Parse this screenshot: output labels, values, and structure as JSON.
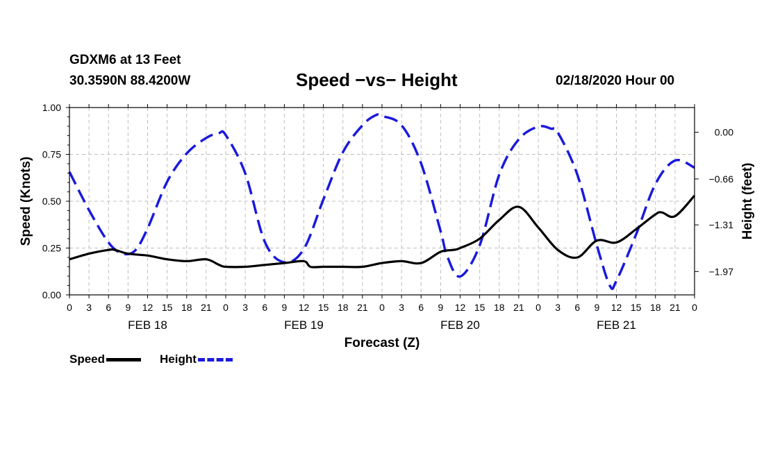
{
  "header": {
    "station": "GDXM6 at 13 Feet",
    "coords": "30.3590N 88.4200W",
    "title": "Speed −vs− Height",
    "stamp": "02/18/2020 Hour 00"
  },
  "legend": {
    "speed_label": "Speed",
    "height_label": "Height"
  },
  "colors": {
    "speed": "#000000",
    "height": "#1a1adc",
    "grid": "#bdbdbd"
  },
  "chart_data": {
    "type": "line",
    "title": "Speed −vs− Height",
    "xlabel": "Forecast (Z)",
    "ylabel": "Speed (Knots)",
    "y2label": "Height (feet)",
    "x_range_hours": [
      0,
      96
    ],
    "ylim": [
      0,
      1.0
    ],
    "y2lim": [
      -2.3,
      0.35
    ],
    "yticks": [
      "0.00",
      "0.25",
      "0.50",
      "0.75",
      "1.00"
    ],
    "yticks_values": [
      0,
      0.25,
      0.5,
      0.75,
      1.0
    ],
    "y2ticks": [
      "0.00",
      "−0.66",
      "−1.31",
      "−1.97"
    ],
    "y2ticks_values": [
      0,
      -0.66,
      -1.31,
      -1.97
    ],
    "xtick_labels": [
      "0",
      "3",
      "6",
      "9",
      "12",
      "15",
      "18",
      "21",
      "0",
      "3",
      "6",
      "9",
      "12",
      "15",
      "18",
      "21",
      "0",
      "3",
      "6",
      "9",
      "12",
      "15",
      "18",
      "21",
      "0",
      "3",
      "6",
      "9",
      "12",
      "15",
      "18",
      "21",
      "0"
    ],
    "day_labels": [
      "FEB 18",
      "FEB 19",
      "FEB 20",
      "FEB 21"
    ],
    "day_label_hours": [
      12,
      36,
      60,
      84
    ],
    "grid": true,
    "series": [
      {
        "name": "Speed",
        "axis": "left",
        "style": "solid",
        "x": [
          0,
          3,
          6,
          7,
          9,
          12,
          15,
          18,
          21,
          23,
          24,
          27,
          30,
          33,
          36,
          37,
          39,
          42,
          45,
          48,
          51,
          54,
          57,
          59,
          60,
          63,
          66,
          69,
          72,
          75,
          78,
          81,
          84,
          87,
          90,
          91,
          93,
          96
        ],
        "values": [
          0.19,
          0.22,
          0.24,
          0.24,
          0.22,
          0.21,
          0.19,
          0.18,
          0.19,
          0.16,
          0.15,
          0.15,
          0.16,
          0.17,
          0.18,
          0.15,
          0.15,
          0.15,
          0.15,
          0.17,
          0.18,
          0.17,
          0.23,
          0.24,
          0.25,
          0.3,
          0.4,
          0.47,
          0.36,
          0.24,
          0.2,
          0.29,
          0.28,
          0.35,
          0.43,
          0.44,
          0.42,
          0.53
        ]
      },
      {
        "name": "Height",
        "axis": "right",
        "style": "dashed",
        "x": [
          0,
          3,
          6,
          8,
          10,
          12,
          15,
          18,
          21,
          23,
          24,
          27,
          30,
          33,
          36,
          39,
          42,
          45,
          47,
          48,
          51,
          54,
          57,
          58,
          60,
          63,
          66,
          69,
          72,
          74,
          75,
          78,
          81,
          83,
          84,
          87,
          90,
          93,
          96
        ],
        "values": [
          -0.56,
          -1.1,
          -1.56,
          -1.71,
          -1.68,
          -1.36,
          -0.7,
          -0.3,
          -0.08,
          -0.01,
          -0.04,
          -0.58,
          -1.55,
          -1.84,
          -1.65,
          -0.95,
          -0.28,
          0.1,
          0.24,
          0.23,
          0.1,
          -0.44,
          -1.4,
          -1.75,
          -2.04,
          -1.6,
          -0.6,
          -0.1,
          0.08,
          0.05,
          0.0,
          -0.6,
          -1.6,
          -2.17,
          -2.1,
          -1.45,
          -0.73,
          -0.4,
          -0.5
        ]
      }
    ]
  }
}
